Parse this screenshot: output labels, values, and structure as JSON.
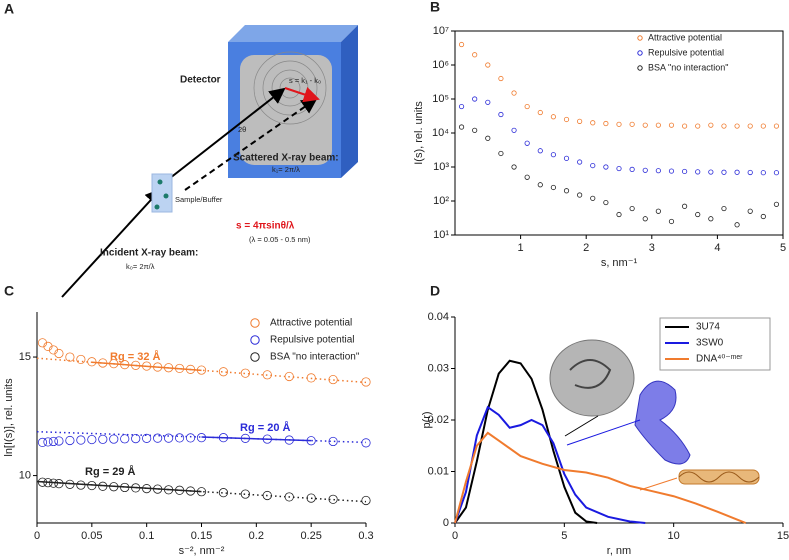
{
  "diagram": {
    "panel_label": "A",
    "detector": "Detector",
    "s_vector": "s = k₁ - k₀",
    "angle": "2θ",
    "scattered_title": "Scattered X-ray beam:",
    "scattered_k": "k₁= 2π/λ",
    "sample": "Sample/Buffer",
    "s_formula": "s = 4πsinθ/λ",
    "wavelength": "(λ = 0.05 - 0.5 nm)",
    "incident_title": "Incident X-ray beam:",
    "incident_k": "k₀= 2π/λ"
  },
  "chart_data": [
    {
      "type": "scatter",
      "panel_label": "B",
      "x_label": "s, nm⁻¹",
      "y_label": "I(s), rel. units",
      "log_y": true,
      "xlim": [
        0,
        5
      ],
      "xticks": [
        1,
        2,
        3,
        4,
        5
      ],
      "ylim": [
        10,
        10000000
      ],
      "yticks": [
        {
          "value": 10,
          "label": "10¹"
        },
        {
          "value": 100,
          "label": "10²"
        },
        {
          "value": 1000,
          "label": "10³"
        },
        {
          "value": 10000,
          "label": "10⁴"
        },
        {
          "value": 100000,
          "label": "10⁵"
        },
        {
          "value": 1000000,
          "label": "10⁶"
        },
        {
          "value": 10000000,
          "label": "10⁷"
        }
      ],
      "x": [
        0.1,
        0.3,
        0.5,
        0.7,
        0.9,
        1.1,
        1.3,
        1.5,
        1.7,
        1.9,
        2.1,
        2.3,
        2.5,
        2.7,
        2.9,
        3.1,
        3.3,
        3.5,
        3.7,
        3.9,
        4.1,
        4.3,
        4.5,
        4.7,
        4.9
      ],
      "series": [
        {
          "name": "Attractive potential",
          "color": "#f07b2e",
          "values": [
            4000000,
            2000000,
            1000000,
            400000,
            150000,
            60000,
            40000,
            30000,
            25000,
            22000,
            20000,
            19000,
            18000,
            18000,
            17000,
            17000,
            17000,
            16000,
            16000,
            17000,
            16000,
            16000,
            16000,
            16000,
            16000
          ]
        },
        {
          "name": "Repulsive potential",
          "color": "#2b2bd8",
          "values": [
            60000,
            100000,
            80000,
            35000,
            12000,
            5000,
            3000,
            2300,
            1800,
            1400,
            1100,
            1000,
            900,
            850,
            800,
            780,
            760,
            740,
            720,
            710,
            700,
            700,
            690,
            680,
            680
          ]
        },
        {
          "name": "BSA \"no interaction\"",
          "color": "#222222",
          "values": [
            15000,
            12000,
            7000,
            2500,
            1000,
            500,
            300,
            250,
            200,
            150,
            120,
            90,
            40,
            60,
            30,
            50,
            25,
            70,
            40,
            30,
            60,
            20,
            50,
            35,
            80
          ]
        }
      ]
    },
    {
      "type": "scatter",
      "panel_label": "C",
      "x_label": "s⁻², nm⁻²",
      "y_label": "ln[I(s)], rel. units",
      "xlim": [
        0,
        0.3
      ],
      "xticks": [
        0,
        0.05,
        0.1,
        0.15,
        0.2,
        0.25,
        0.3
      ],
      "ylim": [
        8,
        16.9
      ],
      "yticks": [
        10,
        15
      ],
      "x": [
        0.005,
        0.01,
        0.015,
        0.02,
        0.03,
        0.04,
        0.05,
        0.06,
        0.07,
        0.08,
        0.09,
        0.1,
        0.11,
        0.12,
        0.13,
        0.14,
        0.15,
        0.17,
        0.19,
        0.21,
        0.23,
        0.25,
        0.27,
        0.3
      ],
      "series": [
        {
          "name": "Attractive potential",
          "color": "#f07b2e",
          "values": [
            15.6,
            15.45,
            15.3,
            15.15,
            15.0,
            14.9,
            14.8,
            14.75,
            14.72,
            14.68,
            14.65,
            14.62,
            14.58,
            14.55,
            14.52,
            14.48,
            14.45,
            14.38,
            14.32,
            14.25,
            14.18,
            14.12,
            14.05,
            13.95
          ]
        },
        {
          "name": "Repulsive potential",
          "color": "#2b2bd8",
          "values": [
            11.4,
            11.42,
            11.44,
            11.46,
            11.48,
            11.5,
            11.52,
            11.53,
            11.54,
            11.55,
            11.56,
            11.57,
            11.58,
            11.58,
            11.59,
            11.59,
            11.6,
            11.6,
            11.57,
            11.54,
            11.5,
            11.47,
            11.44,
            11.38
          ]
        },
        {
          "name": "BSA \"no interaction\"",
          "color": "#222222",
          "values": [
            9.72,
            9.7,
            9.68,
            9.66,
            9.63,
            9.6,
            9.58,
            9.55,
            9.53,
            9.5,
            9.48,
            9.45,
            9.43,
            9.4,
            9.38,
            9.35,
            9.32,
            9.28,
            9.22,
            9.16,
            9.1,
            9.05,
            9.0,
            8.95
          ]
        }
      ],
      "fits": [
        {
          "label": "Rg = 32 Å",
          "color": "#f07b2e",
          "x": [
            0,
            0.3
          ],
          "values": [
            14.95,
            13.93
          ],
          "solid_x": [
            0.05,
            0.15
          ]
        },
        {
          "label": "Rg = 20 Å",
          "color": "#2b2bd8",
          "x": [
            0,
            0.3
          ],
          "values": [
            11.85,
            11.4
          ],
          "solid_x": [
            0.15,
            0.25
          ]
        },
        {
          "label": "Rg = 29 Å",
          "color": "#222222",
          "x": [
            0,
            0.3
          ],
          "values": [
            9.75,
            8.9
          ],
          "solid_x": [
            0,
            0.15
          ]
        }
      ]
    },
    {
      "type": "line",
      "panel_label": "D",
      "x_label": "r, nm",
      "y_label": "p(r)",
      "xlim": [
        0,
        15
      ],
      "xticks": [
        0,
        5,
        10,
        15
      ],
      "ylim": [
        0,
        0.04
      ],
      "yticks": [
        0,
        0.01,
        0.02,
        0.03,
        0.04
      ],
      "series": [
        {
          "name": "3U74",
          "color": "#000000",
          "x": [
            0,
            0.5,
            1,
            1.5,
            2,
            2.5,
            3,
            3.5,
            4,
            4.5,
            5,
            5.5,
            6,
            6.5
          ],
          "values": [
            0,
            0.003,
            0.012,
            0.022,
            0.029,
            0.0315,
            0.031,
            0.028,
            0.022,
            0.014,
            0.007,
            0.002,
            0.0003,
            0
          ]
        },
        {
          "name": "3SW0",
          "color": "#1a1ae0",
          "x": [
            0,
            0.5,
            1,
            1.5,
            2,
            2.5,
            3,
            3.5,
            4,
            4.5,
            5,
            5.5,
            6,
            7,
            8,
            8.7
          ],
          "values": [
            0,
            0.006,
            0.017,
            0.0225,
            0.021,
            0.0185,
            0.019,
            0.02,
            0.019,
            0.0155,
            0.0095,
            0.0055,
            0.003,
            0.0012,
            0.0003,
            0
          ]
        },
        {
          "name": "DNA⁴⁰⁻ᵐᵉʳ",
          "color": "#f07b2e",
          "x": [
            0,
            0.5,
            1,
            1.5,
            2,
            3,
            4,
            5,
            6,
            7,
            8,
            9,
            10,
            11,
            12,
            13,
            13.3
          ],
          "values": [
            0,
            0.008,
            0.015,
            0.0175,
            0.016,
            0.013,
            0.0115,
            0.0103,
            0.0098,
            0.0088,
            0.0072,
            0.0062,
            0.0052,
            0.0038,
            0.0022,
            0.0005,
            0
          ]
        }
      ]
    }
  ]
}
